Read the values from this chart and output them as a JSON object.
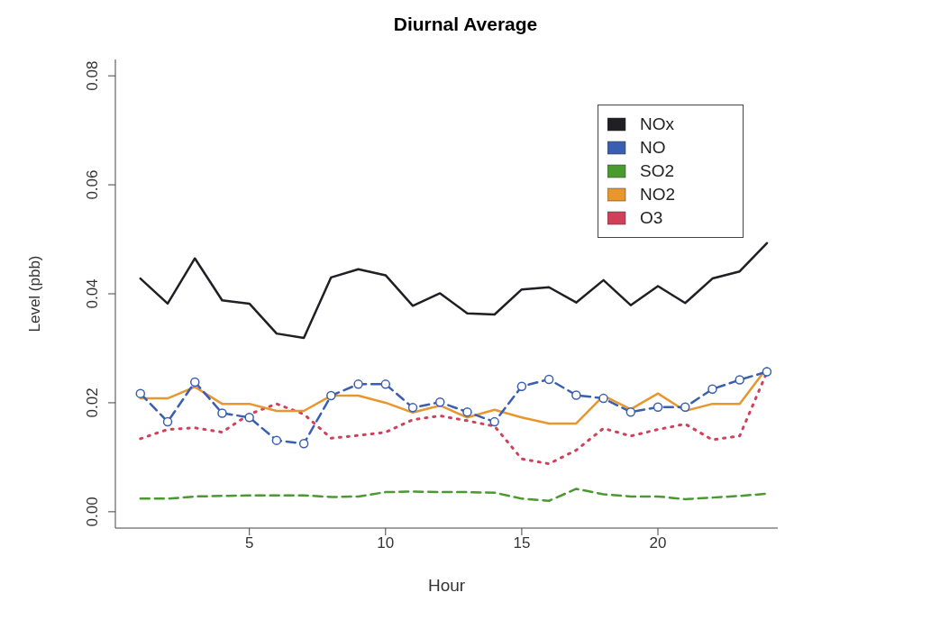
{
  "chart_data": {
    "type": "line",
    "title": "Diurnal Average",
    "xlabel": "Hour",
    "ylabel": "Level (pbb)",
    "x": [
      1,
      2,
      3,
      4,
      5,
      6,
      7,
      8,
      9,
      10,
      11,
      12,
      13,
      14,
      15,
      16,
      17,
      18,
      19,
      20,
      21,
      22,
      23,
      24
    ],
    "xlim": [
      0.08,
      24.4
    ],
    "xticks": [
      5,
      10,
      15,
      20
    ],
    "ylim": [
      -0.003,
      0.083
    ],
    "yticks": [
      {
        "value": 0,
        "label": "0.00"
      },
      {
        "value": 0.02,
        "label": "0.02"
      },
      {
        "value": 0.04,
        "label": "0.04"
      },
      {
        "value": 0.06,
        "label": "0.06"
      },
      {
        "value": 0.08,
        "label": "0.08"
      }
    ],
    "grid": false,
    "legend": "top right",
    "series": [
      {
        "name": "NOx",
        "color": "#1f1f24",
        "line_style": "solid",
        "marker": "none",
        "values": [
          0.0428,
          0.0382,
          0.0465,
          0.0388,
          0.0382,
          0.0327,
          0.0319,
          0.043,
          0.0445,
          0.0434,
          0.0378,
          0.0401,
          0.0364,
          0.0362,
          0.0408,
          0.0412,
          0.0384,
          0.0425,
          0.0379,
          0.0414,
          0.0383,
          0.0428,
          0.0441,
          0.0493
        ]
      },
      {
        "name": "NO",
        "color": "#3a5fb0",
        "line_style": "dashed",
        "marker": "circle",
        "values": [
          0.0217,
          0.0165,
          0.0238,
          0.0181,
          0.0173,
          0.0131,
          0.0125,
          0.0213,
          0.0234,
          0.0234,
          0.0191,
          0.0201,
          0.0183,
          0.0165,
          0.023,
          0.0243,
          0.0214,
          0.0208,
          0.0183,
          0.0192,
          0.0192,
          0.0225,
          0.0242,
          0.0257
        ]
      },
      {
        "name": "SO2",
        "color": "#4a9a30",
        "line_style": "dashed",
        "marker": "none",
        "values": [
          0.0024,
          0.0024,
          0.0028,
          0.0029,
          0.003,
          0.003,
          0.003,
          0.0027,
          0.0028,
          0.0036,
          0.0037,
          0.0036,
          0.0036,
          0.0035,
          0.0024,
          0.002,
          0.0042,
          0.0032,
          0.0028,
          0.0028,
          0.0023,
          0.0026,
          0.0029,
          0.0033
        ]
      },
      {
        "name": "NO2",
        "color": "#e8962e",
        "line_style": "solid",
        "marker": "none",
        "values": [
          0.0208,
          0.0208,
          0.0229,
          0.0198,
          0.0198,
          0.0185,
          0.0185,
          0.0213,
          0.0213,
          0.02,
          0.0182,
          0.0195,
          0.0173,
          0.0187,
          0.0173,
          0.0162,
          0.0162,
          0.0213,
          0.0188,
          0.0217,
          0.0185,
          0.0198,
          0.0198,
          0.0264
        ]
      },
      {
        "name": "O3",
        "color": "#d0405a",
        "line_style": "dotted",
        "marker": "none",
        "values": [
          0.0134,
          0.0151,
          0.0154,
          0.0146,
          0.0179,
          0.0198,
          0.0179,
          0.0135,
          0.014,
          0.0146,
          0.0169,
          0.0176,
          0.0167,
          0.0157,
          0.0097,
          0.0088,
          0.0113,
          0.0153,
          0.0139,
          0.0151,
          0.0161,
          0.0132,
          0.0139,
          0.0256
        ]
      }
    ]
  }
}
